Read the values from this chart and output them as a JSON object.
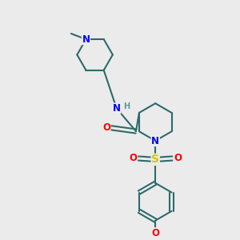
{
  "background_color": "#ebebeb",
  "bond_color": "#2d6b6b",
  "N_color": "#0000ff",
  "O_color": "#ff0000",
  "S_color": "#cccc00",
  "H_color": "#5a9a9a",
  "line_width": 1.5,
  "font_size": 8.5,
  "figsize": [
    3.0,
    3.0
  ],
  "dpi": 100,
  "xlim": [
    0,
    10
  ],
  "ylim": [
    0,
    10
  ]
}
